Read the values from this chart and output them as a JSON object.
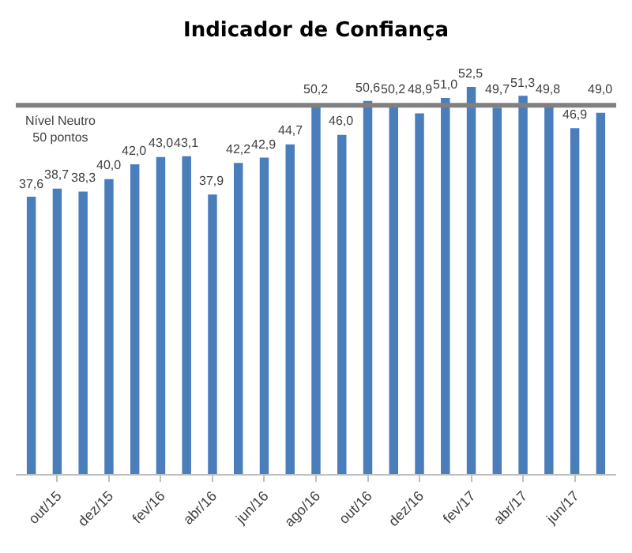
{
  "chart_data": {
    "type": "bar",
    "title": "Indicador de Confiança",
    "categories": [
      null,
      "out/15",
      null,
      "dez/15",
      null,
      "fev/16",
      null,
      "abr/16",
      null,
      "jun/16",
      null,
      "ago/16",
      null,
      "out/16",
      null,
      "dez/16",
      null,
      "fev/17",
      null,
      "abr/17",
      null,
      "jun/17",
      null
    ],
    "values": [
      37.6,
      38.7,
      38.3,
      40.0,
      42.0,
      43.0,
      43.1,
      37.9,
      42.2,
      42.9,
      44.7,
      50.2,
      46.0,
      50.6,
      50.2,
      48.9,
      51.0,
      52.5,
      49.7,
      51.3,
      49.8,
      46.9,
      49.0
    ],
    "value_labels": [
      "37,6",
      "38,7",
      "38,3",
      "40,0",
      "42,0",
      "43,0",
      "43,1",
      "37,9",
      "42,2",
      "42,9",
      "44,7",
      "50,2",
      "46,0",
      "50,6",
      "50,2",
      "48,9",
      "51,0",
      "52,5",
      "49,7",
      "51,3",
      "49,8",
      "46,9",
      "49,0"
    ],
    "color": "#4a7ebb",
    "ref_lines": [
      {
        "axis": "y",
        "value": 50,
        "label": "Nível Neutro\n50 pontos",
        "color": "#808080"
      }
    ],
    "grid": false
  }
}
